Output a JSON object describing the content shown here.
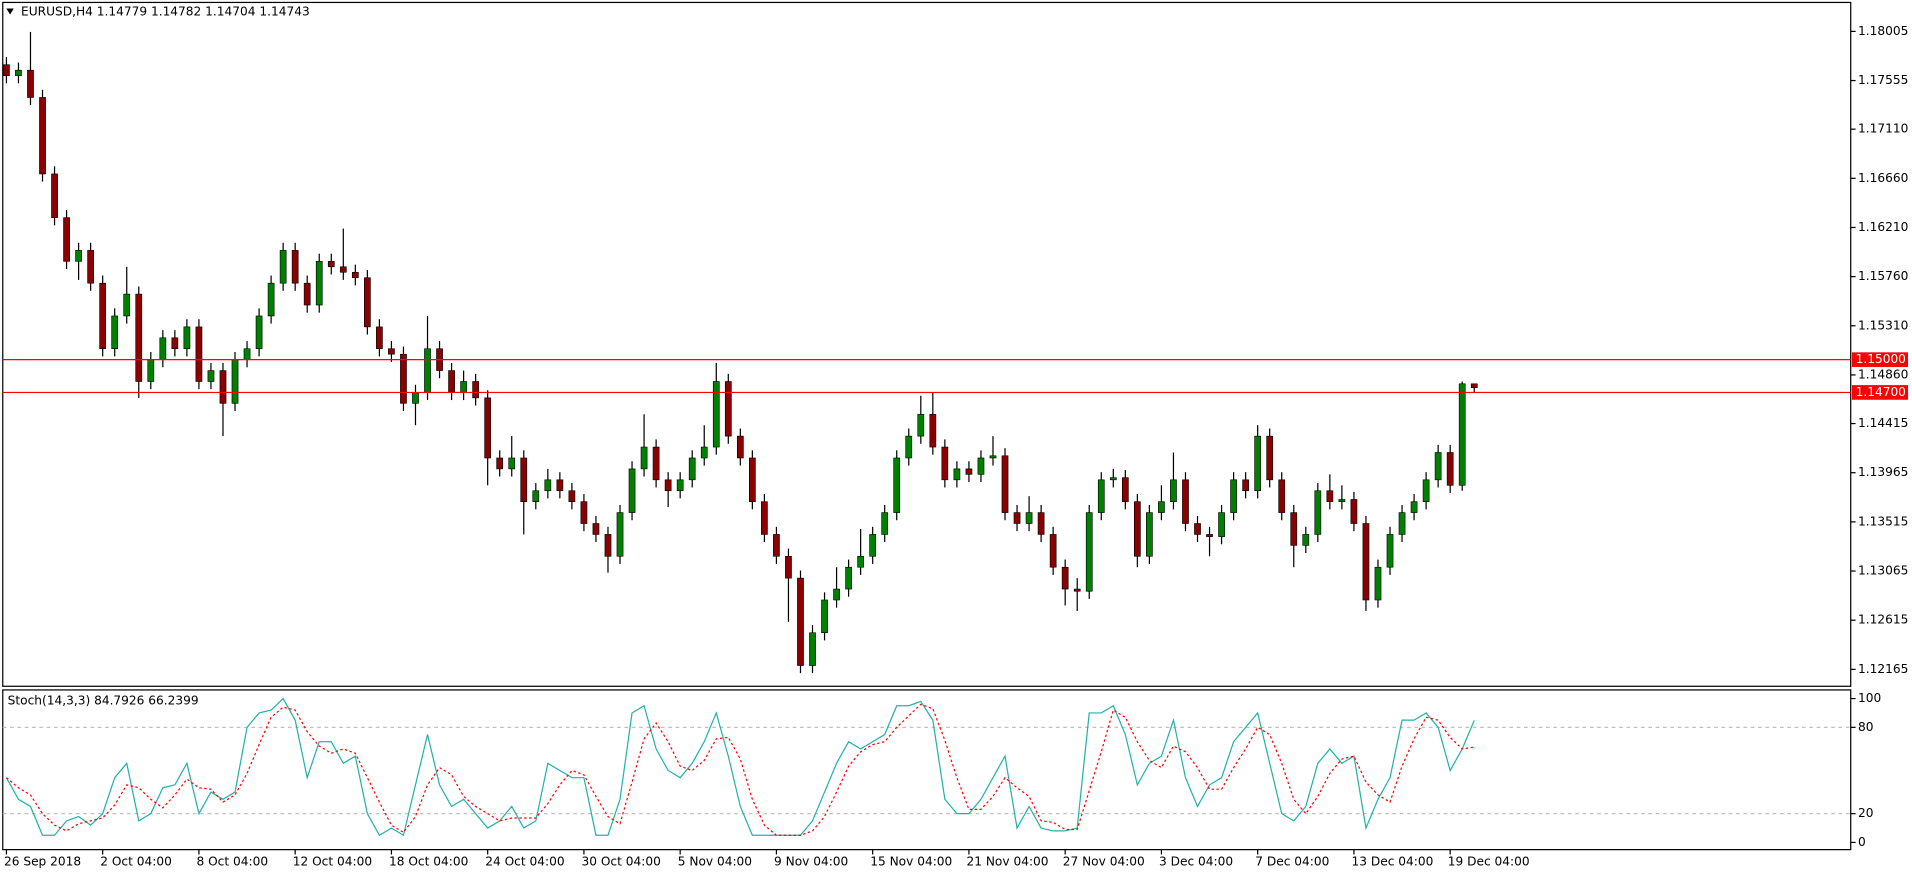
{
  "chart_data": [
    {
      "type": "candlestick",
      "title": "EURUSD,H4  1.14779 1.14782 1.14704 1.14743",
      "categories": [
        "26 Sep 2018",
        null,
        null,
        null,
        null,
        null,
        null,
        null,
        "2 Oct 04:00",
        null,
        null,
        null,
        null,
        null,
        null,
        null,
        "8 Oct 04:00",
        null,
        null,
        null,
        null,
        null,
        null,
        null,
        "12 Oct 04:00",
        null,
        null,
        null,
        null,
        null,
        null,
        null,
        "18 Oct 04:00",
        null,
        null,
        null,
        null,
        null,
        null,
        null,
        "24 Oct 04:00",
        null,
        null,
        null,
        null,
        null,
        null,
        null,
        "30 Oct 04:00",
        null,
        null,
        null,
        null,
        null,
        null,
        null,
        "5 Nov 04:00",
        null,
        null,
        null,
        null,
        null,
        null,
        null,
        "9 Nov 04:00",
        null,
        null,
        null,
        null,
        null,
        null,
        null,
        "15 Nov 04:00",
        null,
        null,
        null,
        null,
        null,
        null,
        null,
        "21 Nov 04:00",
        null,
        null,
        null,
        null,
        null,
        null,
        null,
        "27 Nov 04:00",
        null,
        null,
        null,
        null,
        null,
        null,
        null,
        "3 Dec 04:00",
        null,
        null,
        null,
        null,
        null,
        null,
        null,
        "7 Dec 04:00",
        null,
        null,
        null,
        null,
        null,
        null,
        null,
        "13 Dec 04:00",
        null,
        null,
        null,
        null,
        null,
        null,
        null,
        "19 Dec 04:00",
        null,
        null
      ],
      "open": [
        1.177,
        1.176,
        1.1765,
        1.174,
        1.167,
        1.163,
        1.159,
        1.16,
        1.157,
        1.151,
        1.154,
        1.156,
        1.148,
        1.15,
        1.152,
        1.151,
        1.153,
        1.148,
        1.149,
        1.146,
        1.15,
        1.151,
        1.154,
        1.157,
        1.16,
        1.157,
        1.155,
        1.159,
        1.1585,
        1.158,
        1.1575,
        1.153,
        1.151,
        1.1505,
        1.146,
        1.147,
        1.151,
        1.149,
        1.147,
        1.148,
        1.1465,
        1.141,
        1.14,
        1.141,
        1.137,
        1.138,
        1.139,
        1.138,
        1.137,
        1.135,
        1.134,
        1.132,
        1.136,
        1.14,
        1.142,
        1.139,
        1.138,
        1.139,
        1.141,
        1.142,
        1.148,
        1.143,
        1.141,
        1.137,
        1.134,
        1.132,
        1.13,
        1.122,
        1.125,
        1.128,
        1.129,
        1.131,
        1.132,
        1.134,
        1.136,
        1.141,
        1.143,
        1.145,
        1.142,
        1.139,
        1.14,
        1.1395,
        1.141,
        1.1412,
        1.136,
        1.135,
        1.136,
        1.134,
        1.131,
        1.129,
        1.1288,
        1.136,
        1.139,
        1.1392,
        1.137,
        1.132,
        1.136,
        1.137,
        1.139,
        1.135,
        1.134,
        1.1338,
        1.136,
        1.139,
        1.138,
        1.143,
        1.139,
        1.136,
        1.133,
        1.134,
        1.138,
        1.137,
        1.1372,
        1.135,
        1.128,
        1.131,
        1.134,
        1.136,
        1.137,
        1.139,
        1.1415,
        1.1385,
        1.14779
      ],
      "high": [
        1.1777,
        1.1772,
        1.18,
        1.1747,
        1.1677,
        1.1637,
        1.1607,
        1.1607,
        1.1577,
        1.1547,
        1.1585,
        1.1567,
        1.1507,
        1.1527,
        1.1527,
        1.1537,
        1.1537,
        1.1497,
        1.1497,
        1.1507,
        1.1517,
        1.1547,
        1.1577,
        1.1607,
        1.1607,
        1.1577,
        1.1597,
        1.1597,
        1.162,
        1.1587,
        1.1582,
        1.1537,
        1.1517,
        1.1512,
        1.1477,
        1.154,
        1.1517,
        1.1497,
        1.149,
        1.1487,
        1.1472,
        1.1417,
        1.143,
        1.1417,
        1.1387,
        1.14,
        1.1397,
        1.1387,
        1.1377,
        1.1357,
        1.1347,
        1.1367,
        1.1407,
        1.145,
        1.1427,
        1.1397,
        1.1397,
        1.1417,
        1.144,
        1.1497,
        1.1487,
        1.1437,
        1.1417,
        1.1377,
        1.1347,
        1.1327,
        1.1307,
        1.1257,
        1.1287,
        1.131,
        1.1317,
        1.1345,
        1.1347,
        1.1367,
        1.1417,
        1.1437,
        1.1467,
        1.147,
        1.1427,
        1.1407,
        1.1407,
        1.1417,
        1.143,
        1.1419,
        1.1367,
        1.1375,
        1.1367,
        1.1347,
        1.1317,
        1.13,
        1.1367,
        1.1397,
        1.14,
        1.1399,
        1.1377,
        1.1367,
        1.1385,
        1.1415,
        1.1397,
        1.1357,
        1.1347,
        1.1367,
        1.1397,
        1.1397,
        1.144,
        1.1437,
        1.1397,
        1.1367,
        1.1347,
        1.1387,
        1.1395,
        1.1385,
        1.1379,
        1.1357,
        1.1317,
        1.1347,
        1.1367,
        1.1377,
        1.1397,
        1.1422,
        1.1422,
        1.148,
        1.14782
      ],
      "low": [
        1.1753,
        1.1753,
        1.1733,
        1.1663,
        1.1623,
        1.1583,
        1.1573,
        1.1563,
        1.1503,
        1.1503,
        1.1533,
        1.1465,
        1.1473,
        1.1493,
        1.1503,
        1.1503,
        1.1473,
        1.1473,
        1.143,
        1.1453,
        1.1493,
        1.1503,
        1.1533,
        1.1563,
        1.1563,
        1.1543,
        1.1543,
        1.1578,
        1.1573,
        1.1568,
        1.1523,
        1.1503,
        1.1498,
        1.1453,
        1.144,
        1.1463,
        1.1483,
        1.1463,
        1.1463,
        1.1458,
        1.1385,
        1.1393,
        1.1393,
        1.134,
        1.1363,
        1.1373,
        1.1373,
        1.1363,
        1.1343,
        1.1333,
        1.1305,
        1.1313,
        1.1353,
        1.1393,
        1.1383,
        1.1365,
        1.1373,
        1.1383,
        1.1403,
        1.1413,
        1.1423,
        1.1403,
        1.1363,
        1.1333,
        1.1313,
        1.126,
        1.1213,
        1.1213,
        1.1243,
        1.1273,
        1.1283,
        1.1303,
        1.1313,
        1.1333,
        1.1353,
        1.1403,
        1.1423,
        1.1413,
        1.1383,
        1.1383,
        1.1388,
        1.1388,
        1.1403,
        1.1353,
        1.1343,
        1.1343,
        1.1333,
        1.1303,
        1.1275,
        1.127,
        1.1281,
        1.1353,
        1.1383,
        1.1363,
        1.131,
        1.1313,
        1.1353,
        1.1363,
        1.1343,
        1.1333,
        1.132,
        1.1331,
        1.1353,
        1.1373,
        1.1373,
        1.1383,
        1.1353,
        1.131,
        1.1323,
        1.1333,
        1.1363,
        1.1363,
        1.1343,
        1.127,
        1.1273,
        1.1303,
        1.1333,
        1.1353,
        1.1363,
        1.1383,
        1.1378,
        1.138,
        1.14704
      ],
      "close": [
        1.176,
        1.1765,
        1.174,
        1.167,
        1.163,
        1.159,
        1.16,
        1.157,
        1.151,
        1.154,
        1.156,
        1.148,
        1.15,
        1.152,
        1.151,
        1.153,
        1.148,
        1.149,
        1.146,
        1.15,
        1.151,
        1.154,
        1.157,
        1.16,
        1.157,
        1.155,
        1.159,
        1.1585,
        1.158,
        1.1575,
        1.153,
        1.151,
        1.1505,
        1.146,
        1.147,
        1.151,
        1.149,
        1.147,
        1.148,
        1.1465,
        1.141,
        1.14,
        1.141,
        1.137,
        1.138,
        1.139,
        1.138,
        1.137,
        1.135,
        1.134,
        1.132,
        1.136,
        1.14,
        1.142,
        1.139,
        1.138,
        1.139,
        1.141,
        1.142,
        1.148,
        1.143,
        1.141,
        1.137,
        1.134,
        1.132,
        1.13,
        1.122,
        1.125,
        1.128,
        1.129,
        1.131,
        1.132,
        1.134,
        1.136,
        1.141,
        1.143,
        1.145,
        1.142,
        1.139,
        1.14,
        1.1395,
        1.141,
        1.1412,
        1.136,
        1.135,
        1.136,
        1.134,
        1.131,
        1.129,
        1.1288,
        1.136,
        1.139,
        1.1392,
        1.137,
        1.132,
        1.136,
        1.137,
        1.139,
        1.135,
        1.134,
        1.1338,
        1.136,
        1.139,
        1.138,
        1.143,
        1.139,
        1.136,
        1.133,
        1.134,
        1.138,
        1.137,
        1.1372,
        1.135,
        1.128,
        1.131,
        1.134,
        1.136,
        1.137,
        1.139,
        1.1415,
        1.1385,
        1.14779,
        1.14743
      ],
      "up_color": "#008000",
      "down_color": "#8b0000",
      "wick_color": "#000000",
      "ylim": [
        1.1201,
        1.1827
      ],
      "yticks": [
        {
          "value": 1.18005,
          "label": "1.18005"
        },
        {
          "value": 1.17555,
          "label": "1.17555"
        },
        {
          "value": 1.1711,
          "label": "1.17110"
        },
        {
          "value": 1.1666,
          "label": "1.16660"
        },
        {
          "value": 1.1621,
          "label": "1.16210"
        },
        {
          "value": 1.1576,
          "label": "1.15760"
        },
        {
          "value": 1.1531,
          "label": "1.15310"
        },
        {
          "value": 1.1486,
          "label": "1.14860"
        },
        {
          "value": 1.14415,
          "label": "1.14415"
        },
        {
          "value": 1.13965,
          "label": "1.13965"
        },
        {
          "value": 1.13515,
          "label": "1.13515"
        },
        {
          "value": 1.13065,
          "label": "1.13065"
        },
        {
          "value": 1.12615,
          "label": "1.12615"
        },
        {
          "value": 1.12165,
          "label": "1.12165"
        }
      ],
      "hlines": [
        {
          "value": 1.15,
          "label": "1.15000",
          "color": "#ff0000"
        },
        {
          "value": 1.147,
          "label": "1.14700",
          "color": "#ff0000"
        }
      ],
      "grid": false
    },
    {
      "type": "line",
      "title": "Stoch(14,3,3) 84.7926 66.2399",
      "series": [
        {
          "color": "#20b2aa",
          "dash": false,
          "values": [
            45,
            30,
            25,
            5,
            5,
            15,
            18,
            12,
            20,
            45,
            55,
            15,
            20,
            38,
            40,
            55,
            20,
            35,
            30,
            35,
            80,
            90,
            92,
            100,
            85,
            45,
            70,
            70,
            55,
            60,
            20,
            5,
            10,
            5,
            40,
            75,
            40,
            25,
            30,
            20,
            10,
            15,
            25,
            10,
            15,
            55,
            50,
            45,
            45,
            5,
            5,
            30,
            90,
            95,
            65,
            50,
            45,
            55,
            70,
            90,
            60,
            25,
            5,
            5,
            5,
            5,
            5,
            15,
            35,
            55,
            70,
            65,
            70,
            75,
            95,
            95,
            98,
            85,
            30,
            20,
            20,
            30,
            45,
            60,
            10,
            25,
            10,
            8,
            8,
            10,
            90,
            90,
            95,
            75,
            40,
            55,
            60,
            85,
            45,
            25,
            40,
            45,
            70,
            80,
            90,
            55,
            20,
            15,
            25,
            55,
            65,
            55,
            60,
            10,
            30,
            45,
            85,
            85,
            90,
            80,
            50,
            65,
            84.7926
          ]
        },
        {
          "color": "#ff0000",
          "dash": true,
          "values": [
            45,
            38,
            33,
            20,
            12,
            8,
            13,
            15,
            17,
            26,
            40,
            38,
            30,
            24,
            33,
            44,
            38,
            37,
            28,
            33,
            48,
            68,
            87,
            94,
            92,
            77,
            67,
            62,
            65,
            62,
            45,
            28,
            12,
            7,
            18,
            40,
            52,
            47,
            32,
            25,
            20,
            15,
            17,
            17,
            17,
            27,
            40,
            50,
            47,
            32,
            18,
            13,
            42,
            72,
            83,
            70,
            53,
            50,
            57,
            72,
            73,
            58,
            30,
            12,
            5,
            5,
            5,
            8,
            18,
            35,
            53,
            63,
            68,
            70,
            80,
            88,
            96,
            93,
            71,
            45,
            23,
            23,
            32,
            45,
            38,
            32,
            15,
            14,
            9,
            9,
            36,
            63,
            92,
            87,
            70,
            57,
            52,
            67,
            63,
            52,
            37,
            37,
            52,
            65,
            80,
            75,
            55,
            30,
            20,
            32,
            48,
            58,
            60,
            42,
            33,
            28,
            53,
            72,
            87,
            85,
            73,
            65,
            66.2399
          ]
        }
      ],
      "ylim": [
        -5,
        106
      ],
      "yticks": [
        0,
        20,
        80,
        100
      ],
      "levels": [
        20,
        80
      ]
    }
  ]
}
